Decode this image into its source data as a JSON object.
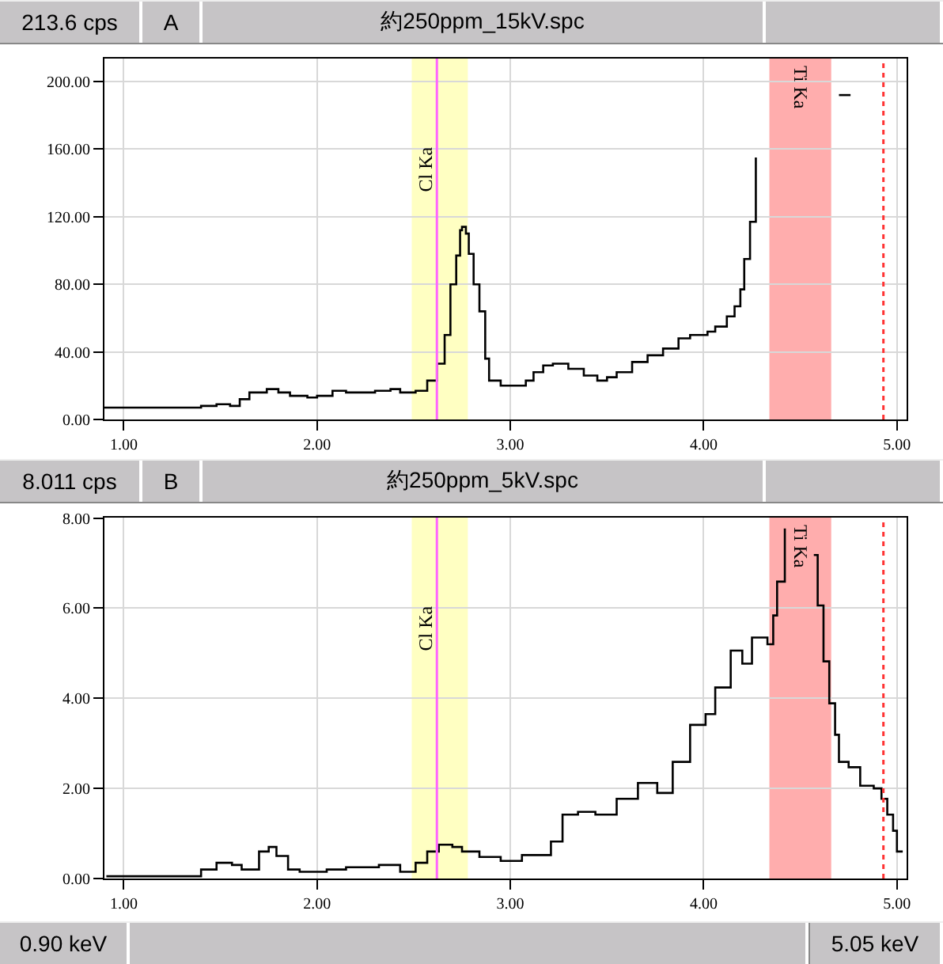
{
  "chart_data": [
    {
      "type": "step",
      "title": "約250ppm_15kV.spc",
      "annotations": [
        "213.6 cps",
        "A"
      ],
      "x": [
        0.9,
        1.0,
        1.1,
        1.2,
        1.3,
        1.4,
        1.48,
        1.55,
        1.6,
        1.65,
        1.74,
        1.8,
        1.86,
        1.95,
        2.0,
        2.08,
        2.15,
        2.22,
        2.3,
        2.38,
        2.43,
        2.51,
        2.57,
        2.62,
        2.66,
        2.69,
        2.72,
        2.74,
        2.75,
        2.77,
        2.785,
        2.81,
        2.84,
        2.87,
        2.89,
        2.95,
        3.03,
        3.08,
        3.12,
        3.17,
        3.22,
        3.3,
        3.38,
        3.45,
        3.5,
        3.55,
        3.63,
        3.71,
        3.79,
        3.87,
        3.93,
        3.98,
        4.02,
        4.06,
        4.12,
        4.16,
        4.19,
        4.21,
        4.24,
        4.27,
        4.29,
        4.7,
        4.76
      ],
      "series": [
        {
          "color": "#000000",
          "values": [
            7,
            7,
            7,
            7,
            7,
            8,
            9,
            8,
            12,
            16,
            18,
            16,
            14,
            13,
            14,
            17,
            16,
            16,
            17,
            18,
            16,
            17,
            23,
            33,
            50,
            80,
            97,
            112,
            114,
            110,
            98,
            80,
            64,
            36,
            23,
            20,
            20,
            23,
            28,
            32,
            33,
            30,
            26,
            23,
            25,
            28,
            34,
            38,
            42,
            48,
            50,
            50,
            52,
            55,
            61,
            67,
            77,
            95,
            117,
            155,
            null,
            192,
            192
          ]
        }
      ],
      "xlim": [
        0.9,
        5.05
      ],
      "ylim": [
        0,
        213.6
      ],
      "xticks": [
        {
          "value": 1,
          "label": "1.00"
        },
        {
          "value": 2,
          "label": "2.00"
        },
        {
          "value": 3,
          "label": "3.00"
        },
        {
          "value": 4,
          "label": "4.00"
        },
        {
          "value": 5,
          "label": "5.00"
        }
      ],
      "yticks": [
        {
          "value": 0,
          "label": "0.00"
        },
        {
          "value": 40,
          "label": "40.00"
        },
        {
          "value": 80,
          "label": "80.00"
        },
        {
          "value": 120,
          "label": "120.00"
        },
        {
          "value": 160,
          "label": "160.00"
        },
        {
          "value": 200,
          "label": "200.00"
        }
      ],
      "grid": true,
      "ref_lines": [
        {
          "axis": "x",
          "value": 2.62,
          "label": "Cl Ka",
          "color": "#ff66ff",
          "line_style": "solid"
        },
        {
          "axis": "x",
          "value": 4.93,
          "color": "#ff3333",
          "line_style": "dotted"
        }
      ],
      "bands": [
        {
          "axis": "x",
          "from": 2.49,
          "to": 2.78,
          "color": "#ffff66"
        },
        {
          "axis": "x",
          "from": 4.34,
          "to": 4.66,
          "label": "Ti Ka",
          "color": "#ff3333"
        }
      ]
    },
    {
      "type": "step",
      "title": "約250ppm_5kV.spc",
      "annotations": [
        "8.011 cps",
        "B",
        "0.90 keV",
        "5.05 keV"
      ],
      "x": [
        0.91,
        1.0,
        1.1,
        1.2,
        1.32,
        1.4,
        1.48,
        1.56,
        1.61,
        1.7,
        1.75,
        1.79,
        1.85,
        1.91,
        2.05,
        2.15,
        2.25,
        2.32,
        2.43,
        2.51,
        2.57,
        2.63,
        2.7,
        2.75,
        2.79,
        2.84,
        2.95,
        3.06,
        3.14,
        3.21,
        3.27,
        3.35,
        3.44,
        3.55,
        3.66,
        3.76,
        3.84,
        3.93,
        4.01,
        4.06,
        4.14,
        4.2,
        4.25,
        4.33,
        4.36,
        4.38,
        4.42,
        4.45,
        4.57,
        4.59,
        4.62,
        4.65,
        4.68,
        4.7,
        4.75,
        4.81,
        4.88,
        4.92,
        4.95,
        4.98,
        5.0,
        5.03
      ],
      "series": [
        {
          "color": "#000000",
          "values": [
            0.05,
            0.05,
            0.05,
            0.05,
            0.05,
            0.2,
            0.35,
            0.3,
            0.2,
            0.6,
            0.7,
            0.5,
            0.2,
            0.15,
            0.2,
            0.25,
            0.25,
            0.3,
            0.15,
            0.35,
            0.6,
            0.75,
            0.7,
            0.6,
            0.6,
            0.48,
            0.39,
            0.52,
            0.52,
            0.82,
            1.42,
            1.48,
            1.42,
            1.77,
            2.12,
            1.9,
            2.59,
            3.41,
            3.65,
            4.24,
            5.06,
            4.77,
            5.35,
            5.2,
            5.84,
            6.59,
            7.77,
            null,
            7.18,
            6.06,
            4.82,
            3.89,
            3.19,
            2.59,
            2.47,
            2.06,
            2.0,
            1.77,
            1.42,
            1.06,
            0.6,
            0.6
          ]
        }
      ],
      "xlim": [
        0.9,
        5.05
      ],
      "ylim": [
        0,
        8.011
      ],
      "xticks": [
        {
          "value": 1,
          "label": "1.00"
        },
        {
          "value": 2,
          "label": "2.00"
        },
        {
          "value": 3,
          "label": "3.00"
        },
        {
          "value": 4,
          "label": "4.00"
        },
        {
          "value": 5,
          "label": "5.00"
        }
      ],
      "yticks": [
        {
          "value": 0,
          "label": "0.00"
        },
        {
          "value": 2,
          "label": "2.00"
        },
        {
          "value": 4,
          "label": "4.00"
        },
        {
          "value": 6,
          "label": "6.00"
        },
        {
          "value": 8,
          "label": "8.00"
        }
      ],
      "grid": true,
      "ref_lines": [
        {
          "axis": "x",
          "value": 2.62,
          "label": "Cl Ka",
          "color": "#ff66ff",
          "line_style": "solid"
        },
        {
          "axis": "x",
          "value": 4.93,
          "color": "#ff3333",
          "line_style": "dotted"
        }
      ],
      "bands": [
        {
          "axis": "x",
          "from": 2.49,
          "to": 2.78,
          "color": "#ffff66"
        },
        {
          "axis": "x",
          "from": 4.34,
          "to": 4.66,
          "label": "Ti Ka",
          "color": "#ff3333"
        }
      ]
    }
  ]
}
